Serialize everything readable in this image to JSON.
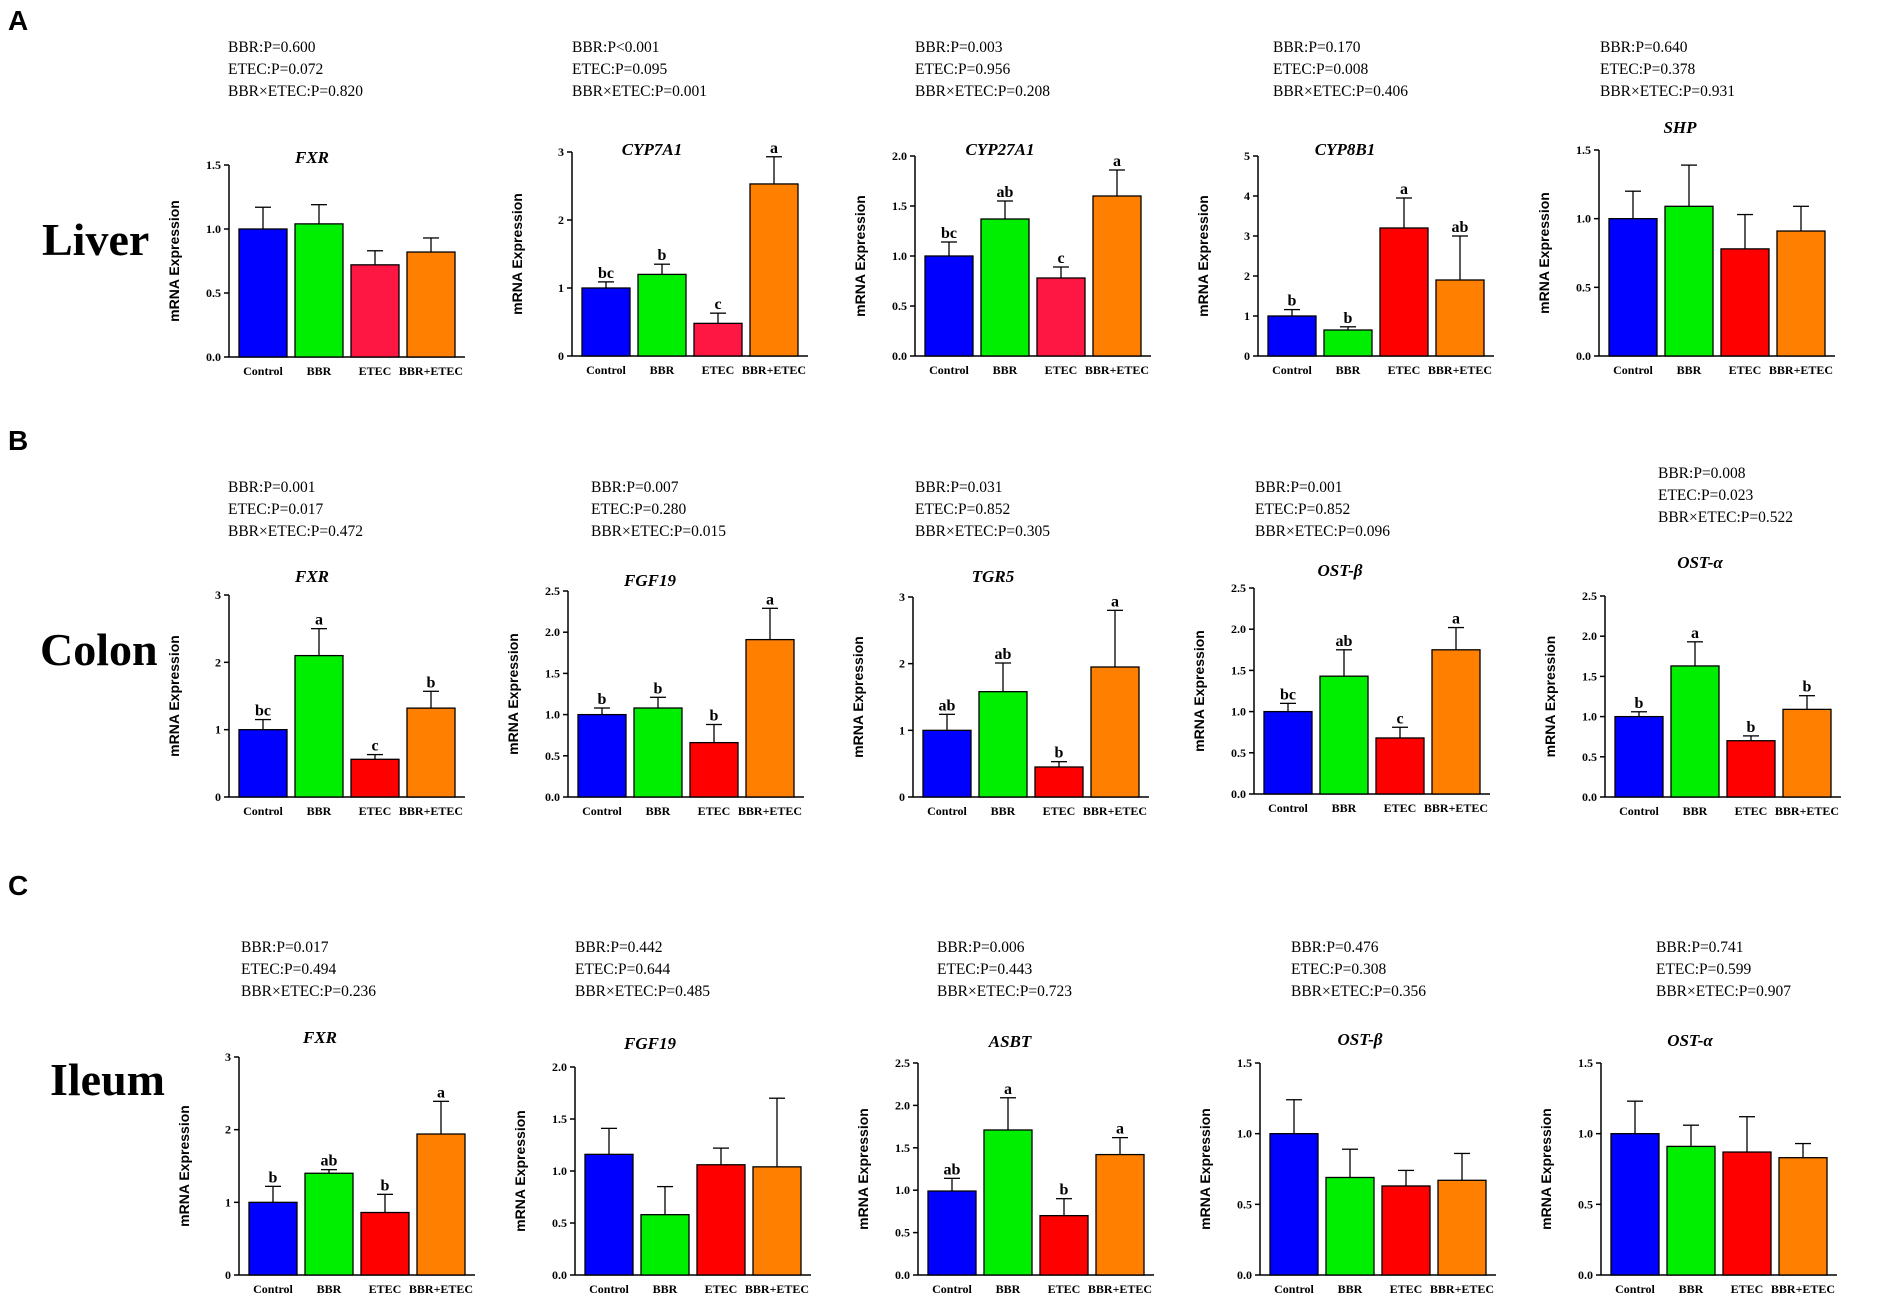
{
  "panels": [
    {
      "letter": "A",
      "tissue": "Liver"
    },
    {
      "letter": "B",
      "tissue": "Colon"
    },
    {
      "letter": "C",
      "tissue": "Ileum"
    }
  ],
  "legend_colors": {
    "Control": "#0000FF",
    "BBR": "#00EE00",
    "ETEC": "#FF0000",
    "BBR+ETEC": "#FF7F00"
  },
  "chart_data": [
    {
      "panel": "A",
      "tissue": "Liver",
      "type": "bar",
      "title": "FXR",
      "ylabel": "mRNA Expression",
      "stats": [
        "BBR:P=0.600",
        "ETEC:P=0.072",
        "BBR×ETEC:P=0.820"
      ],
      "categories": [
        "Control",
        "BBR",
        "ETEC",
        "BBR+ETEC"
      ],
      "values": [
        1.0,
        1.04,
        0.72,
        0.82
      ],
      "errors": [
        0.17,
        0.15,
        0.11,
        0.11
      ],
      "letters": [
        "",
        "",
        "",
        ""
      ],
      "colors": [
        "#0000FF",
        "#00EE00",
        "#FF1744",
        "#FF7F00"
      ],
      "ylim": [
        0,
        1.5
      ],
      "yticks": [
        "0.0",
        "0.5",
        "1.0",
        "1.5"
      ]
    },
    {
      "panel": "A",
      "tissue": "Liver",
      "type": "bar",
      "title": "CYP7A1",
      "ylabel": "mRNA Expression",
      "stats": [
        "BBR:P<0.001",
        "ETEC:P=0.095",
        "BBR×ETEC:P=0.001"
      ],
      "categories": [
        "Control",
        "BBR",
        "ETEC",
        "BBR+ETEC"
      ],
      "values": [
        1.0,
        1.2,
        0.48,
        2.53
      ],
      "errors": [
        0.09,
        0.15,
        0.15,
        0.4
      ],
      "letters": [
        "bc",
        "b",
        "c",
        "a"
      ],
      "colors": [
        "#0000FF",
        "#00EE00",
        "#FF1744",
        "#FF7F00"
      ],
      "ylim": [
        0,
        3
      ],
      "yticks": [
        "0",
        "1",
        "2",
        "3"
      ]
    },
    {
      "panel": "A",
      "tissue": "Liver",
      "type": "bar",
      "title": "CYP27A1",
      "ylabel": "mRNA Expression",
      "stats": [
        "BBR:P=0.003",
        "ETEC:P=0.956",
        "BBR×ETEC:P=0.208"
      ],
      "categories": [
        "Control",
        "BBR",
        "ETEC",
        "BBR+ETEC"
      ],
      "values": [
        1.0,
        1.37,
        0.78,
        1.6
      ],
      "errors": [
        0.14,
        0.18,
        0.11,
        0.26
      ],
      "letters": [
        "bc",
        "ab",
        "c",
        "a"
      ],
      "colors": [
        "#0000FF",
        "#00EE00",
        "#FF1744",
        "#FF7F00"
      ],
      "ylim": [
        0,
        2.0
      ],
      "yticks": [
        "0.0",
        "0.5",
        "1.0",
        "1.5",
        "2.0"
      ]
    },
    {
      "panel": "A",
      "tissue": "Liver",
      "type": "bar",
      "title": "CYP8B1",
      "ylabel": "mRNA Expression",
      "stats": [
        "BBR:P=0.170",
        "ETEC:P=0.008",
        "BBR×ETEC:P=0.406"
      ],
      "categories": [
        "Control",
        "BBR",
        "ETEC",
        "BBR+ETEC"
      ],
      "values": [
        1.0,
        0.65,
        3.2,
        1.9
      ],
      "errors": [
        0.16,
        0.08,
        0.75,
        1.1
      ],
      "letters": [
        "b",
        "b",
        "a",
        "ab"
      ],
      "colors": [
        "#0000FF",
        "#00EE00",
        "#FF0000",
        "#FF7F00"
      ],
      "ylim": [
        0,
        5
      ],
      "yticks": [
        "0",
        "1",
        "2",
        "3",
        "4",
        "5"
      ]
    },
    {
      "panel": "A",
      "tissue": "Liver",
      "type": "bar",
      "title": "SHP",
      "ylabel": "mRNA Expression",
      "stats": [
        "BBR:P=0.640",
        "ETEC:P=0.378",
        "BBR×ETEC:P=0.931"
      ],
      "categories": [
        "Control",
        "BBR",
        "ETEC",
        "BBR+ETEC"
      ],
      "values": [
        1.0,
        1.09,
        0.78,
        0.91
      ],
      "errors": [
        0.2,
        0.3,
        0.25,
        0.18
      ],
      "letters": [
        "",
        "",
        "",
        ""
      ],
      "colors": [
        "#0000FF",
        "#00EE00",
        "#FF0000",
        "#FF7F00"
      ],
      "ylim": [
        0,
        1.5
      ],
      "yticks": [
        "0.0",
        "0.5",
        "1.0",
        "1.5"
      ]
    },
    {
      "panel": "B",
      "tissue": "Colon",
      "type": "bar",
      "title": "FXR",
      "ylabel": "mRNA Expression",
      "stats": [
        "BBR:P=0.001",
        "ETEC:P=0.017",
        "BBR×ETEC:P=0.472"
      ],
      "categories": [
        "Control",
        "BBR",
        "ETEC",
        "BBR+ETEC"
      ],
      "values": [
        1.0,
        2.1,
        0.56,
        1.32
      ],
      "errors": [
        0.15,
        0.4,
        0.07,
        0.25
      ],
      "letters": [
        "bc",
        "a",
        "c",
        "b"
      ],
      "colors": [
        "#0000FF",
        "#00EE00",
        "#FF0000",
        "#FF7F00"
      ],
      "ylim": [
        0,
        3
      ],
      "yticks": [
        "0",
        "1",
        "2",
        "3"
      ]
    },
    {
      "panel": "B",
      "tissue": "Colon",
      "type": "bar",
      "title": "FGF19",
      "ylabel": "mRNA Expression",
      "stats": [
        "BBR:P=0.007",
        "ETEC:P=0.280",
        "BBR×ETEC:P=0.015"
      ],
      "categories": [
        "Control",
        "BBR",
        "ETEC",
        "BBR+ETEC"
      ],
      "values": [
        1.0,
        1.08,
        0.66,
        1.91
      ],
      "errors": [
        0.08,
        0.13,
        0.22,
        0.38
      ],
      "letters": [
        "b",
        "b",
        "b",
        "a"
      ],
      "colors": [
        "#0000FF",
        "#00EE00",
        "#FF0000",
        "#FF7F00"
      ],
      "ylim": [
        0,
        2.5
      ],
      "yticks": [
        "0.0",
        "0.5",
        "1.0",
        "1.5",
        "2.0",
        "2.5"
      ]
    },
    {
      "panel": "B",
      "tissue": "Colon",
      "type": "bar",
      "title": "TGR5",
      "ylabel": "mRNA Expression",
      "stats": [
        "BBR:P=0.031",
        "ETEC:P=0.852",
        "BBR×ETEC:P=0.305"
      ],
      "categories": [
        "Control",
        "BBR",
        "ETEC",
        "BBR+ETEC"
      ],
      "values": [
        1.0,
        1.58,
        0.45,
        1.95
      ],
      "errors": [
        0.24,
        0.43,
        0.08,
        0.85
      ],
      "letters": [
        "ab",
        "ab",
        "b",
        "a"
      ],
      "colors": [
        "#0000FF",
        "#00EE00",
        "#FF0000",
        "#FF7F00"
      ],
      "ylim": [
        0,
        3
      ],
      "yticks": [
        "0",
        "1",
        "2",
        "3"
      ]
    },
    {
      "panel": "B",
      "tissue": "Colon",
      "type": "bar",
      "title": "OST-β",
      "ylabel": "mRNA Expression",
      "stats": [
        "BBR:P=0.001",
        "ETEC:P=0.852",
        "BBR×ETEC:P=0.096"
      ],
      "categories": [
        "Control",
        "BBR",
        "ETEC",
        "BBR+ETEC"
      ],
      "values": [
        1.0,
        1.43,
        0.68,
        1.75
      ],
      "errors": [
        0.1,
        0.32,
        0.13,
        0.27
      ],
      "letters": [
        "bc",
        "ab",
        "c",
        "a"
      ],
      "colors": [
        "#0000FF",
        "#00EE00",
        "#FF0000",
        "#FF7F00"
      ],
      "ylim": [
        0,
        2.5
      ],
      "yticks": [
        "0.0",
        "0.5",
        "1.0",
        "1.5",
        "2.0",
        "2.5"
      ]
    },
    {
      "panel": "B",
      "tissue": "Colon",
      "type": "bar",
      "title": "OST-α",
      "ylabel": "mRNA Expression",
      "stats": [
        "BBR:P=0.008",
        "ETEC:P=0.023",
        "BBR×ETEC:P=0.522"
      ],
      "categories": [
        "Control",
        "BBR",
        "ETEC",
        "BBR+ETEC"
      ],
      "values": [
        1.0,
        1.63,
        0.7,
        1.09
      ],
      "errors": [
        0.06,
        0.3,
        0.06,
        0.17
      ],
      "letters": [
        "b",
        "a",
        "b",
        "b"
      ],
      "colors": [
        "#0000FF",
        "#00EE00",
        "#FF0000",
        "#FF7F00"
      ],
      "ylim": [
        0,
        2.5
      ],
      "yticks": [
        "0.0",
        "0.5",
        "1.0",
        "1.5",
        "2.0",
        "2.5"
      ]
    },
    {
      "panel": "C",
      "tissue": "Ileum",
      "type": "bar",
      "title": "FXR",
      "ylabel": "mRNA Expression",
      "stats": [
        "BBR:P=0.017",
        "ETEC:P=0.494",
        "BBR×ETEC:P=0.236"
      ],
      "categories": [
        "Control",
        "BBR",
        "ETEC",
        "BBR+ETEC"
      ],
      "values": [
        1.0,
        1.4,
        0.86,
        1.94
      ],
      "errors": [
        0.22,
        0.05,
        0.25,
        0.45
      ],
      "letters": [
        "b",
        "ab",
        "b",
        "a"
      ],
      "colors": [
        "#0000FF",
        "#00EE00",
        "#FF0000",
        "#FF7F00"
      ],
      "ylim": [
        0,
        3
      ],
      "yticks": [
        "0",
        "1",
        "2",
        "3"
      ]
    },
    {
      "panel": "C",
      "tissue": "Ileum",
      "type": "bar",
      "title": "FGF19",
      "ylabel": "mRNA Expression",
      "stats": [
        "BBR:P=0.442",
        "ETEC:P=0.644",
        "BBR×ETEC:P=0.485"
      ],
      "categories": [
        "Control",
        "BBR",
        "ETEC",
        "BBR+ETEC"
      ],
      "values": [
        1.16,
        0.58,
        1.06,
        1.04
      ],
      "errors": [
        0.25,
        0.27,
        0.16,
        0.66
      ],
      "letters": [
        "",
        "",
        "",
        ""
      ],
      "colors": [
        "#0000FF",
        "#00EE00",
        "#FF0000",
        "#FF7F00"
      ],
      "ylim": [
        0,
        2.0
      ],
      "yticks": [
        "0.0",
        "0.5",
        "1.0",
        "1.5",
        "2.0"
      ]
    },
    {
      "panel": "C",
      "tissue": "Ileum",
      "type": "bar",
      "title": "ASBT",
      "ylabel": "mRNA Expression",
      "stats": [
        "BBR:P=0.006",
        "ETEC:P=0.443",
        "BBR×ETEC:P=0.723"
      ],
      "categories": [
        "Control",
        "BBR",
        "ETEC",
        "BBR+ETEC"
      ],
      "values": [
        0.99,
        1.71,
        0.7,
        1.42
      ],
      "errors": [
        0.15,
        0.38,
        0.2,
        0.2
      ],
      "letters": [
        "ab",
        "a",
        "b",
        "a"
      ],
      "colors": [
        "#0000FF",
        "#00EE00",
        "#FF0000",
        "#FF7F00"
      ],
      "ylim": [
        0,
        2.5
      ],
      "yticks": [
        "0.0",
        "0.5",
        "1.0",
        "1.5",
        "2.0",
        "2.5"
      ]
    },
    {
      "panel": "C",
      "tissue": "Ileum",
      "type": "bar",
      "title": "OST-β",
      "ylabel": "mRNA Expression",
      "stats": [
        "BBR:P=0.476",
        "ETEC:P=0.308",
        "BBR×ETEC:P=0.356"
      ],
      "categories": [
        "Control",
        "BBR",
        "ETEC",
        "BBR+ETEC"
      ],
      "values": [
        1.0,
        0.69,
        0.63,
        0.67
      ],
      "errors": [
        0.24,
        0.2,
        0.11,
        0.19
      ],
      "letters": [
        "",
        "",
        "",
        ""
      ],
      "colors": [
        "#0000FF",
        "#00EE00",
        "#FF0000",
        "#FF7F00"
      ],
      "ylim": [
        0,
        1.5
      ],
      "yticks": [
        "0.0",
        "0.5",
        "1.0",
        "1.5"
      ]
    },
    {
      "panel": "C",
      "tissue": "Ileum",
      "type": "bar",
      "title": "OST-α",
      "ylabel": "mRNA Expression",
      "stats": [
        "BBR:P=0.741",
        "ETEC:P=0.599",
        "BBR×ETEC:P=0.907"
      ],
      "categories": [
        "Control",
        "BBR",
        "ETEC",
        "BBR+ETEC"
      ],
      "values": [
        1.0,
        0.91,
        0.87,
        0.83
      ],
      "errors": [
        0.23,
        0.15,
        0.25,
        0.1
      ],
      "letters": [
        "",
        "",
        "",
        ""
      ],
      "colors": [
        "#0000FF",
        "#00EE00",
        "#FF0000",
        "#FF7F00"
      ],
      "ylim": [
        0,
        1.5
      ],
      "yticks": [
        "0.0",
        "0.5",
        "1.0",
        "1.5"
      ]
    }
  ]
}
